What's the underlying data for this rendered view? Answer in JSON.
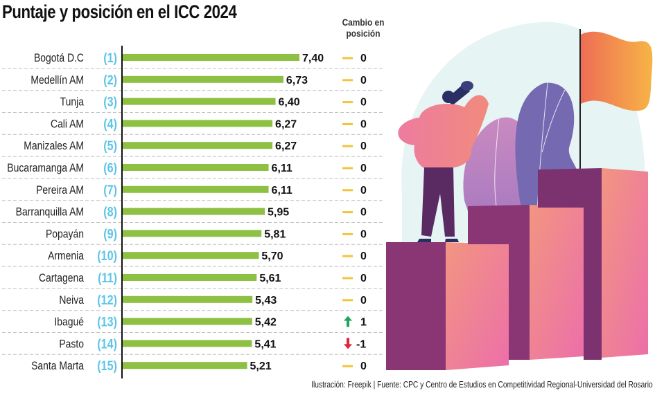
{
  "title": "Puntaje y posición en el ICC 2024",
  "change_header": "Cambio en posición",
  "source": "Ilustración: Freepik | Fuente: CPC y Centro de Estudios en Competitividad Regional-Universidad del Rosario",
  "colors": {
    "bar": "#8dc043",
    "rank": "#5ec4e6",
    "no_change": "#f7c23c",
    "up": "#1fa65a",
    "down": "#e0243a",
    "divider": "#bfbfbf"
  },
  "chart_data": {
    "type": "bar",
    "orientation": "horizontal",
    "title": "Puntaje y posición en el ICC 2024",
    "xlabel": "",
    "ylabel": "",
    "xlim": [
      0,
      7.4
    ],
    "grid": false,
    "categories": [
      "Bogotá D.C",
      "Medellín AM",
      "Tunja",
      "Cali AM",
      "Manizales AM",
      "Bucaramanga AM",
      "Pereira AM",
      "Barranquilla AM",
      "Popayán",
      "Armenia",
      "Cartagena",
      "Neiva",
      "Ibagué",
      "Pasto",
      "Santa Marta"
    ],
    "ranks": [
      "(1)",
      "(2)",
      "(3)",
      "(4)",
      "(5)",
      "(6)",
      "(7)",
      "(8)",
      "(9)",
      "(10)",
      "(11)",
      "(12)",
      "(13)",
      "(14)",
      "(15)"
    ],
    "values": [
      7.4,
      6.73,
      6.4,
      6.27,
      6.27,
      6.11,
      6.11,
      5.95,
      5.81,
      5.7,
      5.61,
      5.43,
      5.42,
      5.41,
      5.21
    ],
    "value_labels": [
      "7,40",
      "6,73",
      "6,40",
      "6,27",
      "6,27",
      "6,11",
      "6,11",
      "5,95",
      "5,81",
      "5,70",
      "5,61",
      "5,43",
      "5,42",
      "5,41",
      "5,21"
    ],
    "position_change": [
      0,
      0,
      0,
      0,
      0,
      0,
      0,
      0,
      0,
      0,
      0,
      0,
      1,
      -1,
      0
    ],
    "position_change_labels": [
      "0",
      "0",
      "0",
      "0",
      "0",
      "0",
      "0",
      "0",
      "0",
      "0",
      "0",
      "0",
      "1",
      "-1",
      "0"
    ],
    "position_change_icons": [
      "dash-icon",
      "dash-icon",
      "dash-icon",
      "dash-icon",
      "dash-icon",
      "dash-icon",
      "dash-icon",
      "dash-icon",
      "dash-icon",
      "dash-icon",
      "dash-icon",
      "dash-icon",
      "arrow-up-icon",
      "arrow-down-icon",
      "dash-icon"
    ]
  }
}
